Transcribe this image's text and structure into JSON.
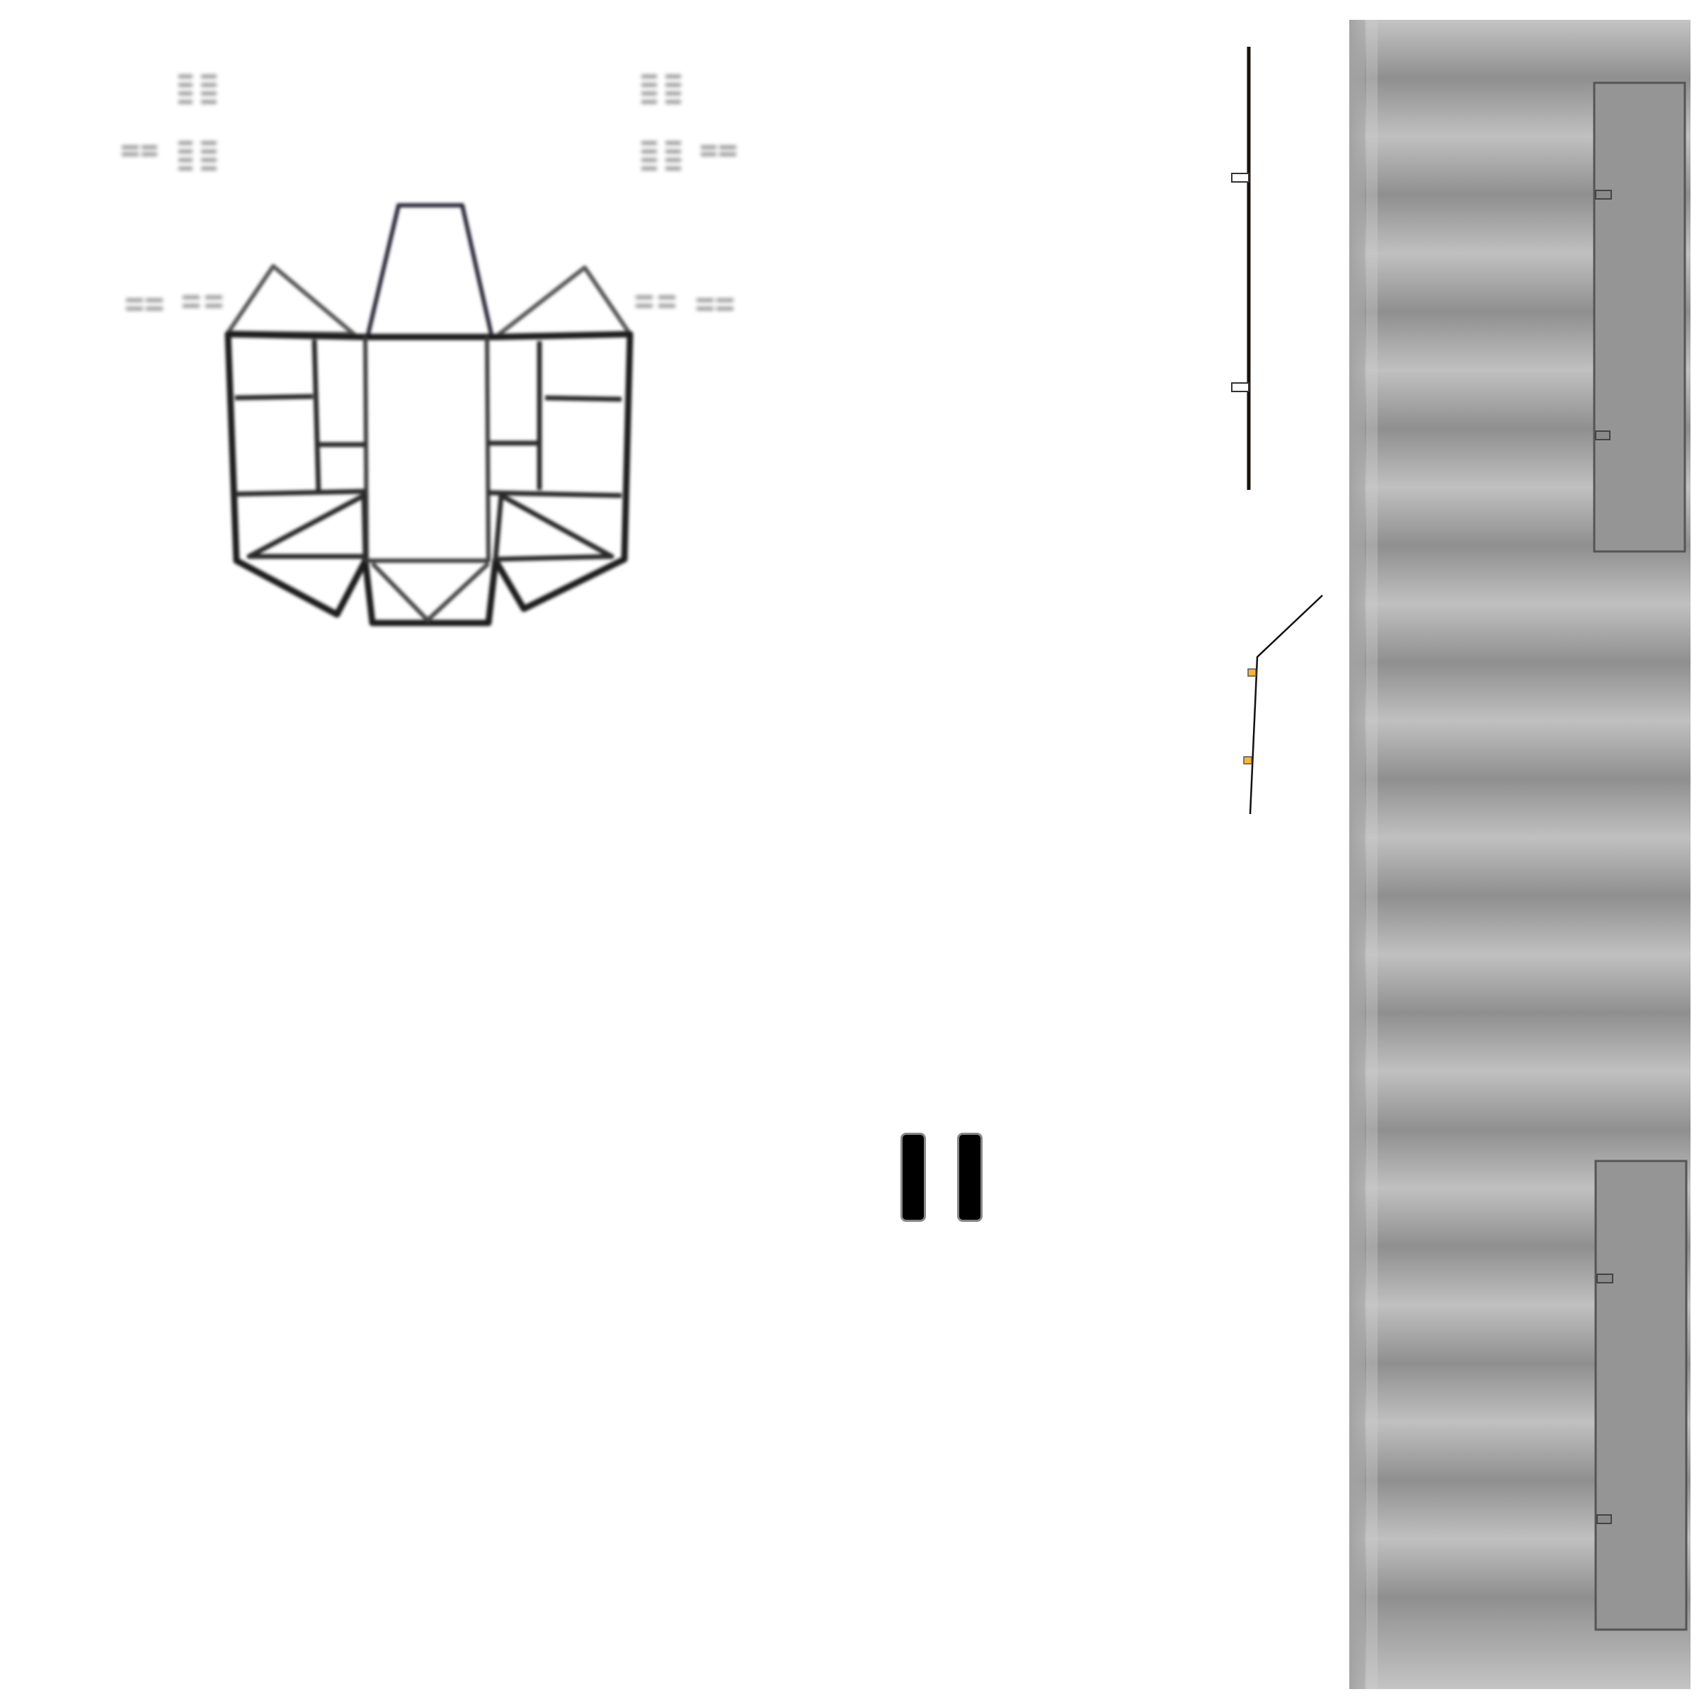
{
  "scene": {
    "background_color": "#ffffff",
    "sprite_color": "#222222",
    "ghost_color": "#777777",
    "panel_color": "#959595",
    "stripe_light": "#c0c0c0",
    "stripe_dark": "#8e8e8e",
    "hinge_color": "#f5b82e"
  },
  "controls": {
    "pause": {
      "icon": "pause-icon",
      "state": "playing"
    }
  },
  "icons": {
    "ship": "ship-sprite",
    "hinged_arm": "hinged-arm-sprite",
    "door_rail": "door-rail-sprite"
  }
}
